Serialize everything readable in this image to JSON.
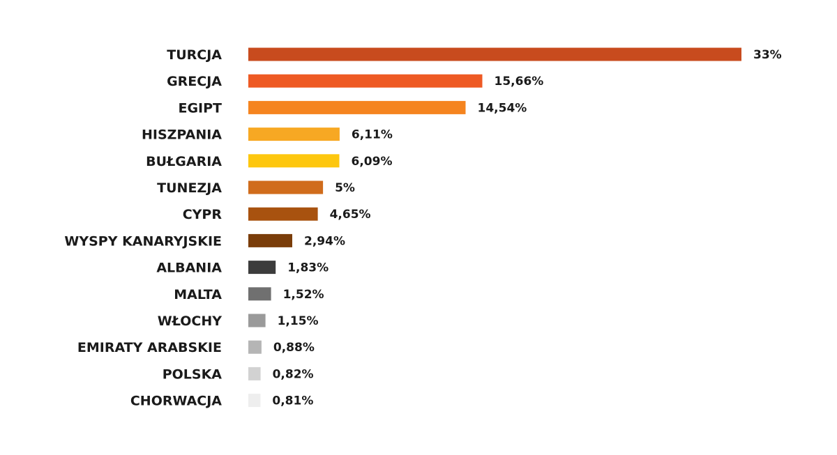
{
  "chart_data": {
    "type": "bar",
    "orientation": "horizontal",
    "categories": [
      "TURCJA",
      "GRECJA",
      "EGIPT",
      "HISZPANIA",
      "BUŁGARIA",
      "TUNEZJA",
      "CYPR",
      "WYSPY KANARYJSKIE",
      "ALBANIA",
      "MALTA",
      "WŁOCHY",
      "EMIRATY ARABSKIE",
      "POLSKA",
      "CHORWACJA"
    ],
    "values": [
      33,
      15.66,
      14.54,
      6.11,
      6.09,
      5,
      4.65,
      2.94,
      1.83,
      1.52,
      1.15,
      0.88,
      0.82,
      0.81
    ],
    "value_labels": [
      "33%",
      "15,66%",
      "14,54%",
      "6,11%",
      "6,09%",
      "5%",
      "4,65%",
      "2,94%",
      "1,83%",
      "1,52%",
      "1,15%",
      "0,88%",
      "0,82%",
      "0,81%"
    ],
    "colors": [
      "#c84b1e",
      "#ee5a24",
      "#f5841f",
      "#f7a823",
      "#fdc70f",
      "#d06c1c",
      "#a8520f",
      "#7a3d0a",
      "#3c3c3c",
      "#707070",
      "#9a9a9a",
      "#b5b5b5",
      "#d2d2d2",
      "#eeeeee"
    ],
    "title": "",
    "xlabel": "",
    "ylabel": "",
    "xlim": [
      0,
      33
    ],
    "grid": false,
    "legend": "none"
  }
}
